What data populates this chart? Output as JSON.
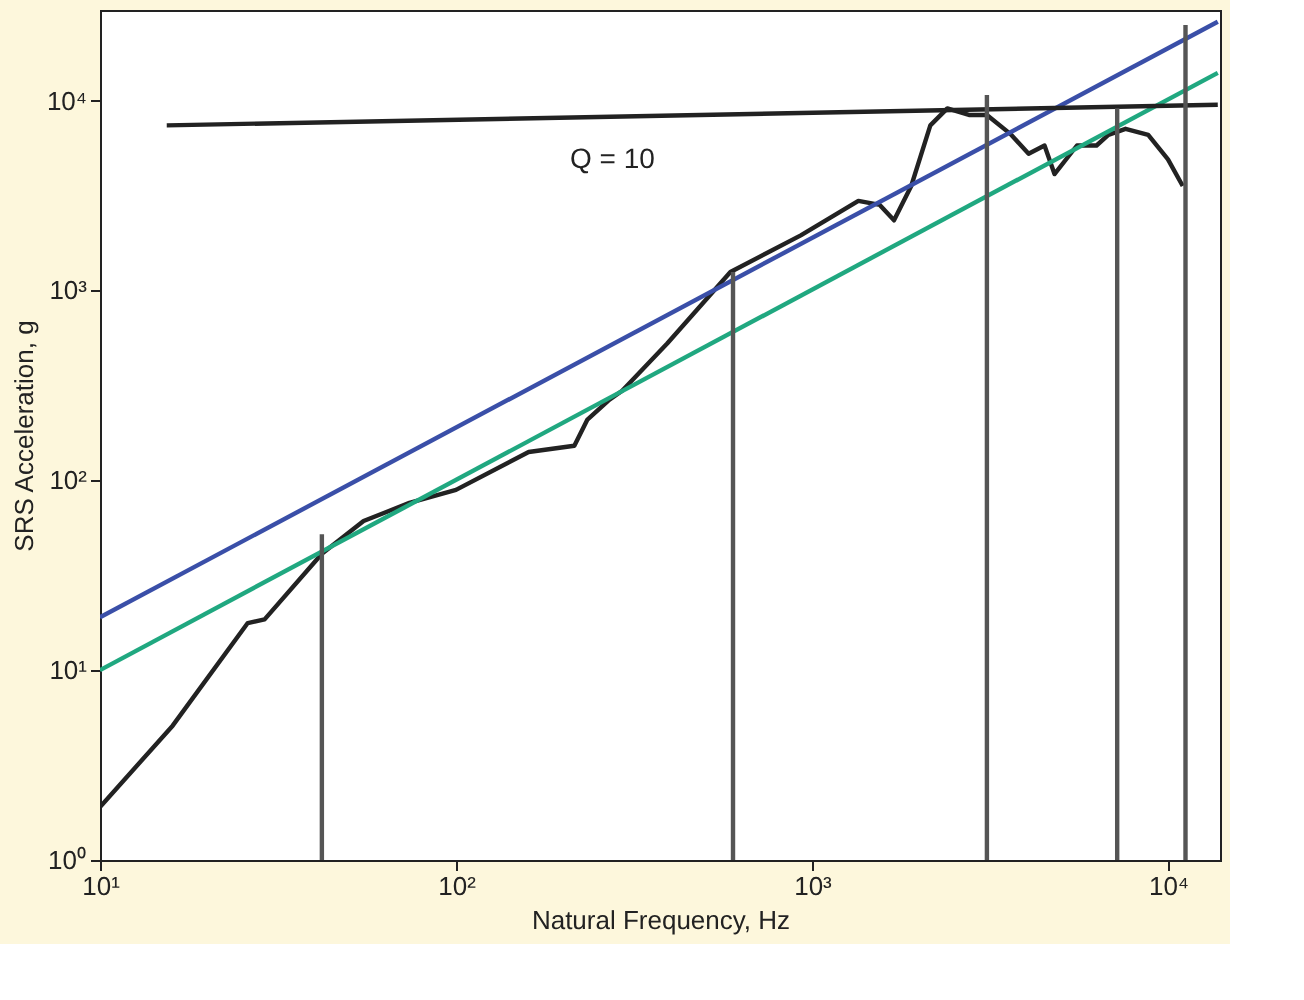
{
  "chart_data": {
    "type": "line",
    "xlabel": "Natural Frequency, Hz",
    "ylabel": "SRS Acceleration, g",
    "log": "xy",
    "grid": false,
    "xlim": [
      10,
      14000
    ],
    "ylim": [
      1,
      30000
    ],
    "xticks": [
      {
        "value": 10,
        "label": "10¹"
      },
      {
        "value": 100,
        "label": "10²"
      },
      {
        "value": 1000,
        "label": "10³"
      },
      {
        "value": 10000,
        "label": "10⁴"
      }
    ],
    "yticks": [
      {
        "value": 1,
        "label": "10⁰"
      },
      {
        "value": 10,
        "label": "10¹"
      },
      {
        "value": 100,
        "label": "10²"
      },
      {
        "value": 1000,
        "label": "10³"
      },
      {
        "value": 10000,
        "label": "10⁴"
      }
    ],
    "series": [
      {
        "color": "#222222",
        "x": [
          10,
          16,
          26,
          29,
          42,
          55,
          74,
          100,
          160,
          215,
          234,
          268,
          293,
          392,
          590,
          930,
          1350,
          1550,
          1700,
          1900,
          2150,
          2400,
          2760,
          3100,
          3600,
          4060,
          4500,
          4800,
          5550,
          6300,
          6800,
          7600,
          8800,
          10000,
          11000
        ],
        "values": [
          1.9,
          5.1,
          17.7,
          18.5,
          41,
          61,
          76,
          89,
          141,
          152,
          209,
          263,
          296,
          525,
          1250,
          1950,
          2960,
          2820,
          2340,
          3550,
          7400,
          9100,
          8400,
          8400,
          6700,
          5250,
          5800,
          4100,
          5800,
          5800,
          6600,
          7100,
          6600,
          4900,
          3550
        ]
      },
      {
        "color": "#3a4fa8",
        "x": [
          10,
          13800
        ],
        "values": [
          19,
          26000
        ]
      },
      {
        "color": "#20a880",
        "x": [
          10,
          13800
        ],
        "values": [
          10,
          14000
        ]
      },
      {
        "color": "#222222",
        "x": [
          15.4,
          13800
        ],
        "values": [
          7400,
          9500
        ]
      },
      {
        "color": "#555555",
        "x": [
          42,
          42
        ],
        "values": [
          1,
          52
        ]
      },
      {
        "color": "#555555",
        "x": [
          600,
          600
        ],
        "values": [
          1,
          1250
        ]
      },
      {
        "color": "#555555",
        "x": [
          3100,
          3100
        ],
        "values": [
          1,
          10700
        ]
      },
      {
        "color": "#555555",
        "x": [
          7200,
          7200
        ],
        "values": [
          1,
          9100
        ]
      },
      {
        "color": "#555555",
        "x": [
          11200,
          11200
        ],
        "values": [
          1,
          25000
        ]
      }
    ],
    "annotations": [
      "Q = 10"
    ]
  }
}
